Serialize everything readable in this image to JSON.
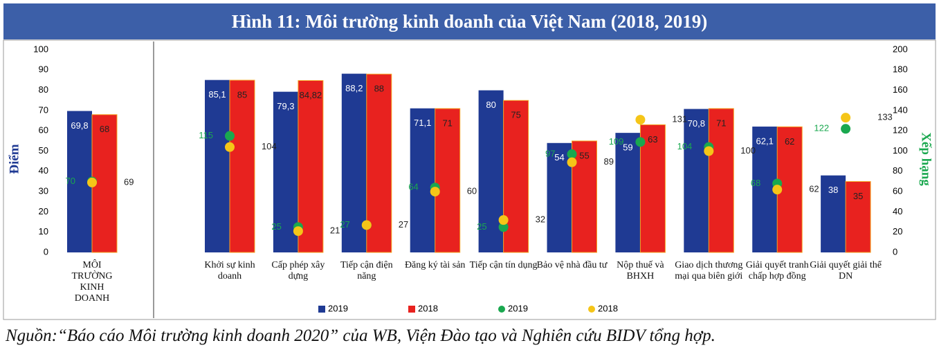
{
  "chart_data": {
    "type": "bar",
    "title": "Hình 11: Môi trường kinh doanh của Việt Nam (2018, 2019)",
    "source": "Nguồn:“Báo cáo Môi trường kinh doanh 2020” của WB, Viện Đào tạo và Nghiên cứu BIDV tổng hợp.",
    "y_label": "Điểm",
    "y2_label": "Xếp hạng",
    "categories": [
      "MÔI TRƯỜNG KINH DOANH",
      "Khởi sự kinh doanh",
      "Cấp phép xây dựng",
      "Tiếp cận điện năng",
      "Đăng ký tài sản",
      "Tiếp cận tín dụng",
      "Bảo vệ nhà đầu tư",
      "Nộp thuế và BHXH",
      "Giao dịch thương mại qua biên giới",
      "Giải quyết tranh chấp hợp đồng",
      "Giải quyết giải thể DN"
    ],
    "series": [
      {
        "name": "2019",
        "color": "#1f3a93",
        "values": [
          69.8,
          85.1,
          79.3,
          88.2,
          71.1,
          80,
          54,
          59,
          70.8,
          62.1,
          38
        ],
        "value_labels": [
          "69,8",
          "85,1",
          "79,3",
          "88,2",
          "71,1",
          "80",
          "54",
          "59",
          "70,8",
          "62,1",
          "38"
        ]
      },
      {
        "name": "2018",
        "color": "#e8221f",
        "values": [
          68,
          85,
          84.82,
          88,
          71,
          75,
          55,
          63,
          71,
          62,
          35
        ],
        "value_labels": [
          "68",
          "85",
          "84,82",
          "88",
          "71",
          "75",
          "55",
          "63",
          "71",
          "62",
          "35"
        ]
      },
      {
        "name": "2019",
        "color": "#1aa84f",
        "type": "scatter",
        "axis": "y2",
        "values": [
          70,
          115,
          25,
          27,
          64,
          25,
          97,
          109,
          104,
          68,
          122
        ]
      },
      {
        "name": "2018",
        "color": "#f5c518",
        "type": "scatter",
        "axis": "y2",
        "values": [
          69,
          104,
          21,
          27,
          60,
          32,
          89,
          131,
          100,
          62,
          133
        ]
      }
    ],
    "ylim": [
      0,
      100
    ],
    "yticks": [
      0,
      10,
      20,
      30,
      40,
      50,
      60,
      70,
      80,
      90,
      100
    ],
    "y2lim": [
      0,
      200
    ],
    "y2ticks": [
      0,
      20,
      40,
      60,
      80,
      100,
      120,
      140,
      160,
      180,
      200
    ]
  }
}
